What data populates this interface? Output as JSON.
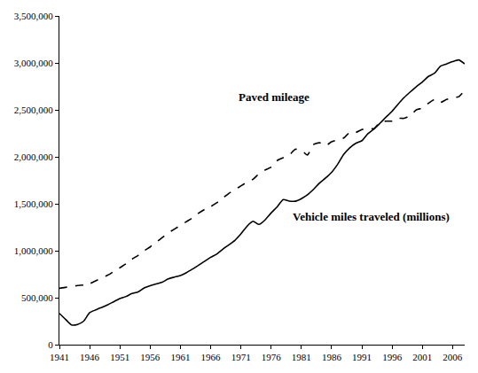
{
  "chart_data": {
    "type": "line",
    "x": [
      1941,
      1942,
      1943,
      1944,
      1945,
      1946,
      1947,
      1948,
      1949,
      1950,
      1951,
      1952,
      1953,
      1954,
      1955,
      1956,
      1957,
      1958,
      1959,
      1960,
      1961,
      1962,
      1963,
      1964,
      1965,
      1966,
      1967,
      1968,
      1969,
      1970,
      1971,
      1972,
      1973,
      1974,
      1975,
      1976,
      1977,
      1978,
      1979,
      1980,
      1981,
      1982,
      1983,
      1984,
      1985,
      1986,
      1987,
      1988,
      1989,
      1990,
      1991,
      1992,
      1993,
      1994,
      1995,
      1996,
      1997,
      1998,
      1999,
      2000,
      2001,
      2002,
      2003,
      2004,
      2005,
      2006,
      2007,
      2008
    ],
    "series": [
      {
        "name": "Paved mileage",
        "color": "#000000",
        "line_style": "dashed",
        "values": [
          600000,
          610000,
          620000,
          630000,
          635000,
          650000,
          680000,
          710000,
          740000,
          780000,
          820000,
          860000,
          910000,
          950000,
          1000000,
          1040000,
          1090000,
          1140000,
          1190000,
          1230000,
          1270000,
          1310000,
          1350000,
          1400000,
          1440000,
          1470000,
          1510000,
          1560000,
          1610000,
          1650000,
          1690000,
          1730000,
          1760000,
          1820000,
          1860000,
          1890000,
          1960000,
          1990000,
          2020000,
          2080000,
          2070000,
          2020000,
          2130000,
          2150000,
          2120000,
          2160000,
          2180000,
          2200000,
          2260000,
          2260000,
          2290000,
          2300000,
          2300000,
          2370000,
          2380000,
          2380000,
          2410000,
          2410000,
          2440000,
          2500000,
          2520000,
          2570000,
          2610000,
          2580000,
          2610000,
          2630000,
          2640000,
          2710000
        ]
      },
      {
        "name": "Vehicle miles traveled (millions)",
        "color": "#000000",
        "line_style": "solid",
        "values": [
          333000,
          270000,
          210000,
          215000,
          250000,
          340000,
          370000,
          397000,
          424000,
          458000,
          491000,
          513000,
          544000,
          561000,
          603000,
          628000,
          647000,
          665000,
          700000,
          719000,
          737000,
          767000,
          805000,
          846000,
          888000,
          930000,
          964000,
          1016000,
          1062000,
          1110000,
          1179000,
          1260000,
          1313000,
          1280000,
          1328000,
          1402000,
          1467000,
          1545000,
          1529000,
          1527000,
          1555000,
          1595000,
          1653000,
          1720000,
          1774000,
          1835000,
          1921000,
          2026000,
          2096000,
          2144000,
          2172000,
          2247000,
          2296000,
          2358000,
          2423000,
          2486000,
          2562000,
          2632000,
          2691000,
          2747000,
          2797000,
          2856000,
          2890000,
          2965000,
          2989000,
          3014000,
          3032000,
          2990000
        ]
      }
    ],
    "annotations": [
      {
        "text": "Paved mileage",
        "x": 1976.5,
        "y": 2640000
      },
      {
        "text": "Vehicle miles traveled (millions)",
        "x": 1992.5,
        "y": 1360000
      }
    ],
    "xlim": [
      1941,
      2008
    ],
    "xticks": [
      1941,
      1946,
      1951,
      1956,
      1961,
      1966,
      1971,
      1976,
      1981,
      1986,
      1991,
      1996,
      2001,
      2006
    ],
    "ylim": [
      0,
      3500000
    ],
    "yticks": [
      0,
      {
        "value": 500000,
        "label": "500,000"
      },
      {
        "value": 1000000,
        "label": "1,000,000"
      },
      {
        "value": 1500000,
        "label": "1,500,000"
      },
      {
        "value": 2000000,
        "label": "2,000,000"
      },
      {
        "value": 2500000,
        "label": "2,500,000"
      },
      {
        "value": 3000000,
        "label": "3,000,000"
      },
      {
        "value": 3500000,
        "label": "3,500,000"
      }
    ],
    "grid": false
  }
}
